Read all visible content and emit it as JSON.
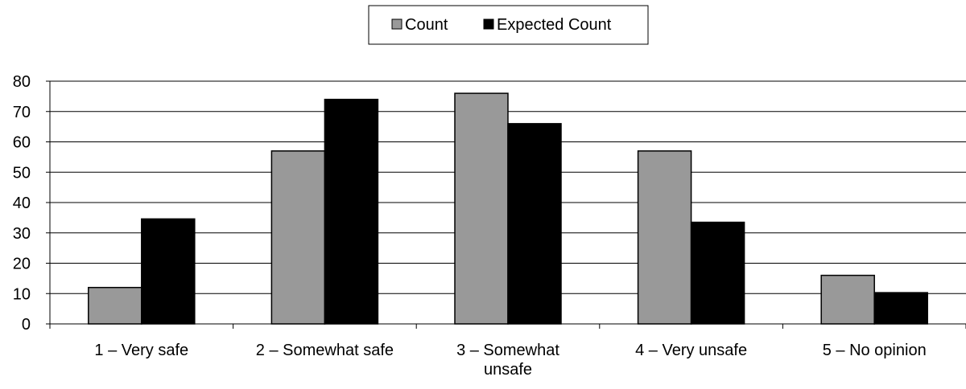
{
  "chart_data": {
    "type": "bar",
    "title": "",
    "xlabel": "",
    "ylabel": "",
    "categories": [
      "1 – Very safe",
      "2 – Somewhat safe",
      "3 – Somewhat unsafe",
      "4 – Very unsafe",
      "5 – No opinion"
    ],
    "series": [
      {
        "name": "Count",
        "color": "#999999",
        "values": [
          12,
          57,
          76,
          57,
          16
        ]
      },
      {
        "name": "Expected Count",
        "color": "#000000",
        "values": [
          34.6,
          74,
          66,
          33.5,
          10.3
        ]
      }
    ],
    "ylim": [
      0,
      80
    ],
    "yticks": [
      0,
      10,
      20,
      30,
      40,
      50,
      60,
      70,
      80
    ],
    "grid": true,
    "legend_position": "top-center"
  }
}
